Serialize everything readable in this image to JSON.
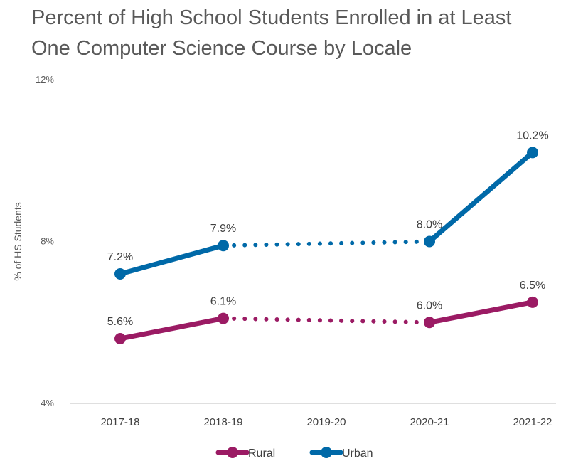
{
  "chart_data": {
    "type": "line",
    "title": "Percent of High School Students Enrolled in at Least One Computer Science Course by Locale",
    "ylabel": "% of HS Students",
    "xlabel": "",
    "categories": [
      "2017-18",
      "2018-19",
      "2019-20",
      "2020-21",
      "2021-22"
    ],
    "ylim": [
      0.04,
      0.12
    ],
    "yticks": [
      "12%",
      "8%",
      "4%"
    ],
    "ytick_values": [
      0.12,
      0.08,
      0.04
    ],
    "legend_position": "bottom",
    "gap_category": "2019-20",
    "series": [
      {
        "name": "Rural",
        "color": "#9B1B64",
        "values": [
          0.056,
          0.061,
          null,
          0.06,
          0.065
        ],
        "labels": [
          "5.6%",
          "6.1%",
          "",
          "6.0%",
          "6.5%"
        ]
      },
      {
        "name": "Urban",
        "color": "#0069A8",
        "values": [
          0.072,
          0.079,
          null,
          0.08,
          0.102
        ],
        "labels": [
          "7.2%",
          "7.9%",
          "",
          "8.0%",
          "10.2%"
        ]
      }
    ]
  }
}
